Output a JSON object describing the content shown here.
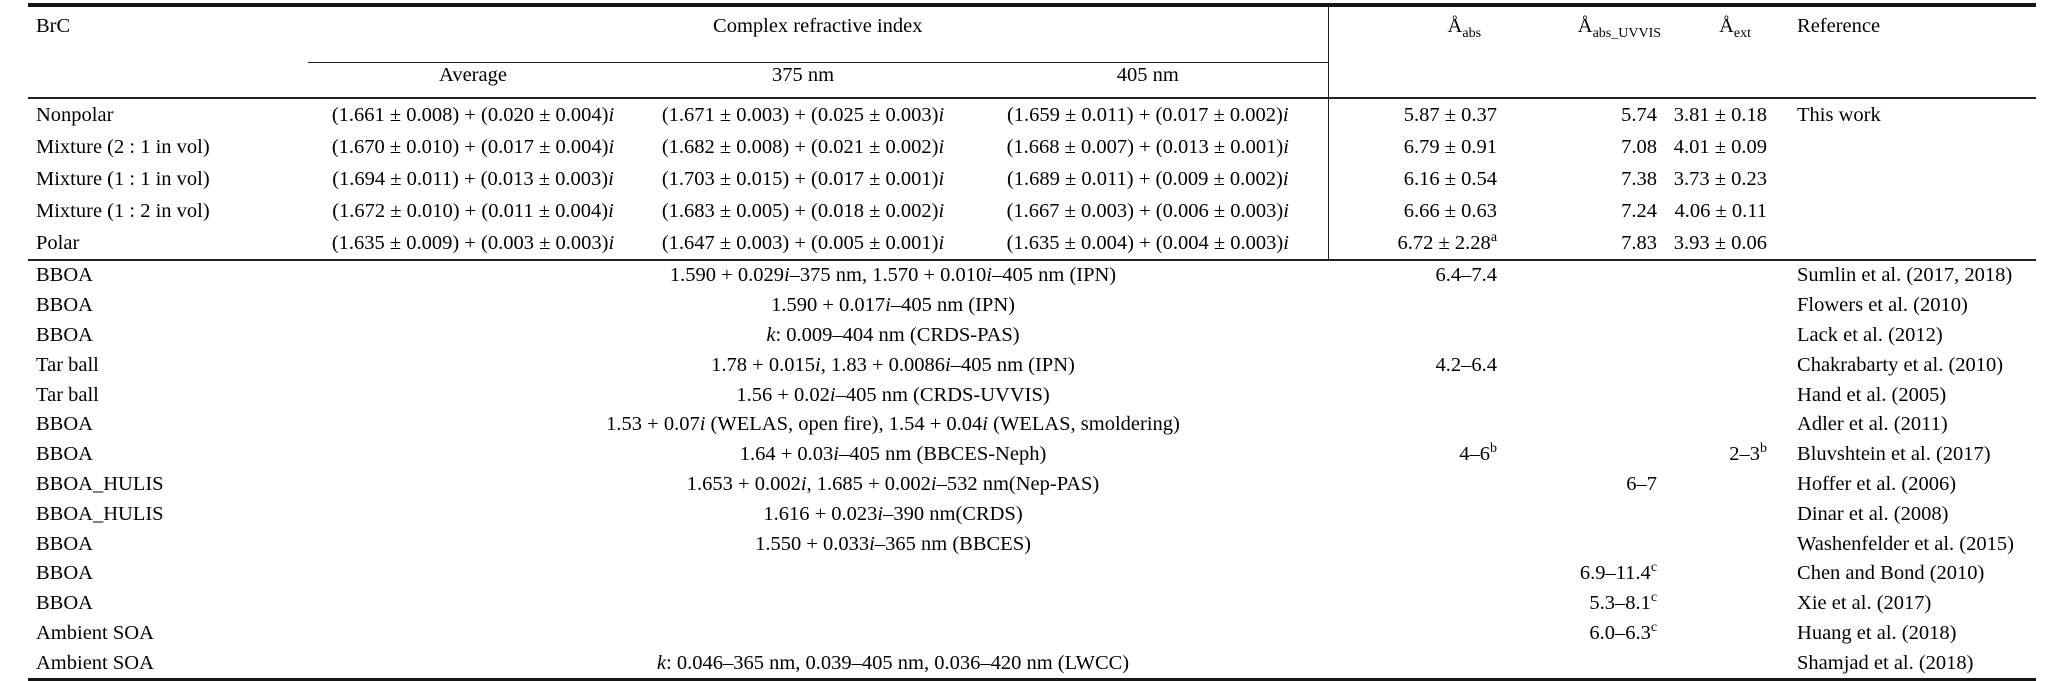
{
  "table": {
    "headers": {
      "brc": "BrC",
      "cri_group": "Complex refractive index",
      "cri_sub": [
        "Average",
        "375 nm",
        "405 nm"
      ],
      "a_abs": {
        "base": "Å",
        "sub": "abs"
      },
      "a_abs_uvvis": {
        "base": "Å",
        "sub": "abs_UVVIS"
      },
      "a_ext": {
        "base": "Å",
        "sub": "ext"
      },
      "reference": "Reference"
    },
    "section1": {
      "rows": [
        {
          "brc": "Nonpolar",
          "avg": "(1.661 ± 0.008) + (0.020 ± 0.004)i",
          "nm375": "(1.671 ± 0.003) + (0.025 ± 0.003)i",
          "nm405": "(1.659 ± 0.011) + (0.017 ± 0.002)i",
          "a_abs": "5.87 ± 0.37",
          "a_abs_uvvis": "5.74",
          "a_ext": "3.81 ± 0.18",
          "reference": "This work"
        },
        {
          "brc": "Mixture (2 : 1 in vol)",
          "avg": "(1.670 ± 0.010) + (0.017 ± 0.004)i",
          "nm375": "(1.682 ± 0.008) + (0.021 ± 0.002)i",
          "nm405": "(1.668 ± 0.007) + (0.013 ± 0.001)i",
          "a_abs": "6.79 ± 0.91",
          "a_abs_uvvis": "7.08",
          "a_ext": "4.01 ± 0.09",
          "reference": ""
        },
        {
          "brc": "Mixture (1 : 1 in vol)",
          "avg": "(1.694 ± 0.011) + (0.013 ± 0.003)i",
          "nm375": "(1.703 ± 0.015) + (0.017 ± 0.001)i",
          "nm405": "(1.689 ± 0.011) + (0.009 ± 0.002)i",
          "a_abs": "6.16 ± 0.54",
          "a_abs_uvvis": "7.38",
          "a_ext": "3.73 ± 0.23",
          "reference": ""
        },
        {
          "brc": "Mixture (1 : 2 in vol)",
          "avg": "(1.672 ± 0.010) + (0.011 ± 0.004)i",
          "nm375": "(1.683 ± 0.005) + (0.018 ± 0.002)i",
          "nm405": "(1.667 ± 0.003) + (0.006 ± 0.003)i",
          "a_abs": "6.66 ± 0.63",
          "a_abs_uvvis": "7.24",
          "a_ext": "4.06 ± 0.11",
          "reference": ""
        },
        {
          "brc": "Polar",
          "avg": "(1.635 ± 0.009) + (0.003 ± 0.003)i",
          "nm375": "(1.647 ± 0.003) + (0.005 ± 0.001)i",
          "nm405": "(1.635 ± 0.004) + (0.004 ± 0.003)i",
          "a_abs": "6.72 ± 2.28^a",
          "a_abs_uvvis": "7.83",
          "a_ext": "3.93 ± 0.06",
          "reference": ""
        }
      ]
    },
    "section2": {
      "rows": [
        {
          "brc": "BBOA",
          "cri": "1.590 + 0.029i–375 nm, 1.570 + 0.010i–405 nm (IPN)",
          "a_abs": "6.4–7.4",
          "a_abs_uvvis": "",
          "a_ext": "",
          "reference": "Sumlin et al. (2017, 2018)"
        },
        {
          "brc": "BBOA",
          "cri": "1.590 + 0.017i–405 nm (IPN)",
          "a_abs": "",
          "a_abs_uvvis": "",
          "a_ext": "",
          "reference": "Flowers et al. (2010)"
        },
        {
          "brc": "BBOA",
          "cri": "k: 0.009–404 nm (CRDS-PAS)",
          "a_abs": "",
          "a_abs_uvvis": "",
          "a_ext": "",
          "reference": "Lack et al. (2012)"
        },
        {
          "brc": "Tar ball",
          "cri": "1.78 + 0.015i, 1.83 + 0.0086i–405 nm (IPN)",
          "a_abs": "4.2–6.4",
          "a_abs_uvvis": "",
          "a_ext": "",
          "reference": "Chakrabarty et al. (2010)"
        },
        {
          "brc": "Tar ball",
          "cri": "1.56 + 0.02i–405 nm (CRDS-UVVIS)",
          "a_abs": "",
          "a_abs_uvvis": "",
          "a_ext": "",
          "reference": "Hand et al. (2005)"
        },
        {
          "brc": "BBOA",
          "cri": "1.53 + 0.07i (WELAS, open fire), 1.54 + 0.04i (WELAS, smoldering)",
          "a_abs": "",
          "a_abs_uvvis": "",
          "a_ext": "",
          "reference": "Adler et al. (2011)"
        },
        {
          "brc": "BBOA",
          "cri": "1.64 + 0.03i–405 nm (BBCES-Neph)",
          "a_abs": "4–6^b",
          "a_abs_uvvis": "",
          "a_ext": "2–3^b",
          "reference": "Bluvshtein et al. (2017)"
        },
        {
          "brc": "BBOA_HULIS",
          "cri": "1.653 + 0.002i, 1.685 + 0.002i–532 nm(Nep-PAS)",
          "a_abs": "",
          "a_abs_uvvis": "6–7",
          "a_ext": "",
          "reference": "Hoffer et al. (2006)"
        },
        {
          "brc": "BBOA_HULIS",
          "cri": "1.616 + 0.023i–390 nm(CRDS)",
          "a_abs": "",
          "a_abs_uvvis": "",
          "a_ext": "",
          "reference": "Dinar et al. (2008)"
        },
        {
          "brc": "BBOA",
          "cri": "1.550 + 0.033i–365 nm (BBCES)",
          "a_abs": "",
          "a_abs_uvvis": "",
          "a_ext": "",
          "reference": "Washenfelder et al. (2015)"
        },
        {
          "brc": "BBOA",
          "cri": "",
          "a_abs": "",
          "a_abs_uvvis": "6.9–11.4^c",
          "a_ext": "",
          "reference": "Chen and Bond (2010)"
        },
        {
          "brc": "BBOA",
          "cri": "",
          "a_abs": "",
          "a_abs_uvvis": "5.3–8.1^c",
          "a_ext": "",
          "reference": "Xie et al. (2017)"
        },
        {
          "brc": "Ambient SOA",
          "cri": "",
          "a_abs": "",
          "a_abs_uvvis": "6.0–6.3^c",
          "a_ext": "",
          "reference": "Huang et al. (2018)"
        },
        {
          "brc": "Ambient SOA",
          "cri": "k: 0.046–365 nm, 0.039–405 nm, 0.036–420 nm (LWCC)",
          "a_abs": "",
          "a_abs_uvvis": "",
          "a_ext": "",
          "reference": "Shamjad et al. (2018)"
        }
      ]
    }
  }
}
